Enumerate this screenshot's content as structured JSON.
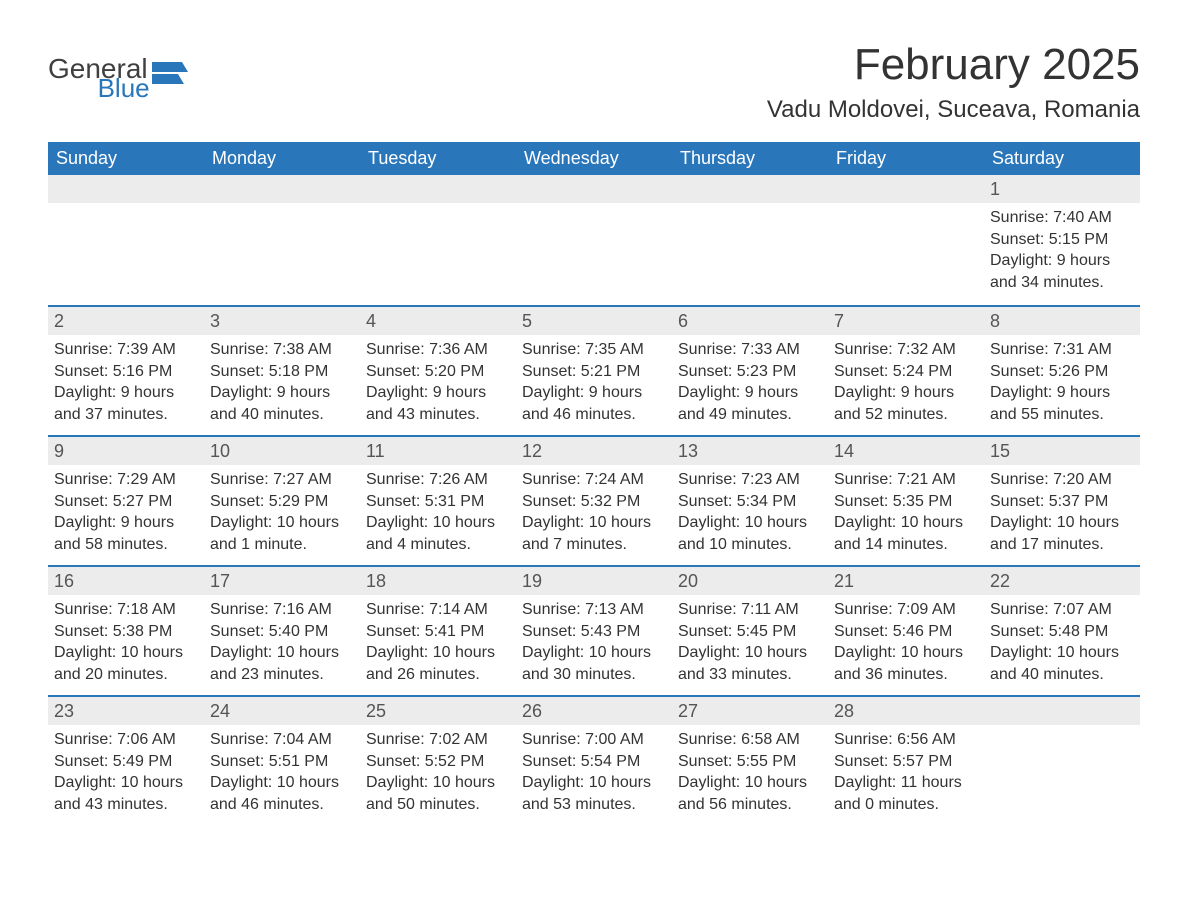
{
  "logo": {
    "general": "General",
    "blue": "Blue",
    "flag_color": "#2a76bb"
  },
  "title": "February 2025",
  "location": "Vadu Moldovei, Suceava, Romania",
  "colors": {
    "header_bg": "#2a76bb",
    "header_text": "#ffffff",
    "daynum_bg": "#ececec",
    "border": "#2a76bb",
    "text": "#333333"
  },
  "weekdays": [
    "Sunday",
    "Monday",
    "Tuesday",
    "Wednesday",
    "Thursday",
    "Friday",
    "Saturday"
  ],
  "weeks": [
    [
      null,
      null,
      null,
      null,
      null,
      null,
      {
        "n": "1",
        "sr": "Sunrise: 7:40 AM",
        "ss": "Sunset: 5:15 PM",
        "dl": "Daylight: 9 hours and 34 minutes."
      }
    ],
    [
      {
        "n": "2",
        "sr": "Sunrise: 7:39 AM",
        "ss": "Sunset: 5:16 PM",
        "dl": "Daylight: 9 hours and 37 minutes."
      },
      {
        "n": "3",
        "sr": "Sunrise: 7:38 AM",
        "ss": "Sunset: 5:18 PM",
        "dl": "Daylight: 9 hours and 40 minutes."
      },
      {
        "n": "4",
        "sr": "Sunrise: 7:36 AM",
        "ss": "Sunset: 5:20 PM",
        "dl": "Daylight: 9 hours and 43 minutes."
      },
      {
        "n": "5",
        "sr": "Sunrise: 7:35 AM",
        "ss": "Sunset: 5:21 PM",
        "dl": "Daylight: 9 hours and 46 minutes."
      },
      {
        "n": "6",
        "sr": "Sunrise: 7:33 AM",
        "ss": "Sunset: 5:23 PM",
        "dl": "Daylight: 9 hours and 49 minutes."
      },
      {
        "n": "7",
        "sr": "Sunrise: 7:32 AM",
        "ss": "Sunset: 5:24 PM",
        "dl": "Daylight: 9 hours and 52 minutes."
      },
      {
        "n": "8",
        "sr": "Sunrise: 7:31 AM",
        "ss": "Sunset: 5:26 PM",
        "dl": "Daylight: 9 hours and 55 minutes."
      }
    ],
    [
      {
        "n": "9",
        "sr": "Sunrise: 7:29 AM",
        "ss": "Sunset: 5:27 PM",
        "dl": "Daylight: 9 hours and 58 minutes."
      },
      {
        "n": "10",
        "sr": "Sunrise: 7:27 AM",
        "ss": "Sunset: 5:29 PM",
        "dl": "Daylight: 10 hours and 1 minute."
      },
      {
        "n": "11",
        "sr": "Sunrise: 7:26 AM",
        "ss": "Sunset: 5:31 PM",
        "dl": "Daylight: 10 hours and 4 minutes."
      },
      {
        "n": "12",
        "sr": "Sunrise: 7:24 AM",
        "ss": "Sunset: 5:32 PM",
        "dl": "Daylight: 10 hours and 7 minutes."
      },
      {
        "n": "13",
        "sr": "Sunrise: 7:23 AM",
        "ss": "Sunset: 5:34 PM",
        "dl": "Daylight: 10 hours and 10 minutes."
      },
      {
        "n": "14",
        "sr": "Sunrise: 7:21 AM",
        "ss": "Sunset: 5:35 PM",
        "dl": "Daylight: 10 hours and 14 minutes."
      },
      {
        "n": "15",
        "sr": "Sunrise: 7:20 AM",
        "ss": "Sunset: 5:37 PM",
        "dl": "Daylight: 10 hours and 17 minutes."
      }
    ],
    [
      {
        "n": "16",
        "sr": "Sunrise: 7:18 AM",
        "ss": "Sunset: 5:38 PM",
        "dl": "Daylight: 10 hours and 20 minutes."
      },
      {
        "n": "17",
        "sr": "Sunrise: 7:16 AM",
        "ss": "Sunset: 5:40 PM",
        "dl": "Daylight: 10 hours and 23 minutes."
      },
      {
        "n": "18",
        "sr": "Sunrise: 7:14 AM",
        "ss": "Sunset: 5:41 PM",
        "dl": "Daylight: 10 hours and 26 minutes."
      },
      {
        "n": "19",
        "sr": "Sunrise: 7:13 AM",
        "ss": "Sunset: 5:43 PM",
        "dl": "Daylight: 10 hours and 30 minutes."
      },
      {
        "n": "20",
        "sr": "Sunrise: 7:11 AM",
        "ss": "Sunset: 5:45 PM",
        "dl": "Daylight: 10 hours and 33 minutes."
      },
      {
        "n": "21",
        "sr": "Sunrise: 7:09 AM",
        "ss": "Sunset: 5:46 PM",
        "dl": "Daylight: 10 hours and 36 minutes."
      },
      {
        "n": "22",
        "sr": "Sunrise: 7:07 AM",
        "ss": "Sunset: 5:48 PM",
        "dl": "Daylight: 10 hours and 40 minutes."
      }
    ],
    [
      {
        "n": "23",
        "sr": "Sunrise: 7:06 AM",
        "ss": "Sunset: 5:49 PM",
        "dl": "Daylight: 10 hours and 43 minutes."
      },
      {
        "n": "24",
        "sr": "Sunrise: 7:04 AM",
        "ss": "Sunset: 5:51 PM",
        "dl": "Daylight: 10 hours and 46 minutes."
      },
      {
        "n": "25",
        "sr": "Sunrise: 7:02 AM",
        "ss": "Sunset: 5:52 PM",
        "dl": "Daylight: 10 hours and 50 minutes."
      },
      {
        "n": "26",
        "sr": "Sunrise: 7:00 AM",
        "ss": "Sunset: 5:54 PM",
        "dl": "Daylight: 10 hours and 53 minutes."
      },
      {
        "n": "27",
        "sr": "Sunrise: 6:58 AM",
        "ss": "Sunset: 5:55 PM",
        "dl": "Daylight: 10 hours and 56 minutes."
      },
      {
        "n": "28",
        "sr": "Sunrise: 6:56 AM",
        "ss": "Sunset: 5:57 PM",
        "dl": "Daylight: 11 hours and 0 minutes."
      },
      null
    ]
  ]
}
